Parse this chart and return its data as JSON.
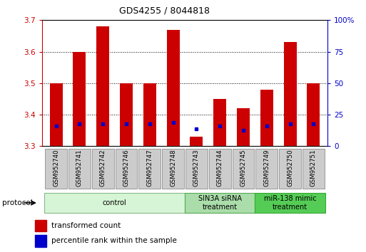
{
  "title": "GDS4255 / 8044818",
  "samples": [
    "GSM952740",
    "GSM952741",
    "GSM952742",
    "GSM952746",
    "GSM952747",
    "GSM952748",
    "GSM952743",
    "GSM952744",
    "GSM952745",
    "GSM952749",
    "GSM952750",
    "GSM952751"
  ],
  "red_values": [
    3.5,
    3.6,
    3.68,
    3.5,
    3.5,
    3.67,
    3.33,
    3.45,
    3.42,
    3.48,
    3.63,
    3.5
  ],
  "blue_values": [
    3.365,
    3.37,
    3.37,
    3.37,
    3.37,
    3.375,
    3.355,
    3.365,
    3.35,
    3.365,
    3.37,
    3.37
  ],
  "red_base": 3.3,
  "ylim_left": [
    3.3,
    3.7
  ],
  "yticks_left": [
    3.3,
    3.4,
    3.5,
    3.6,
    3.7
  ],
  "ylim_right": [
    0,
    100
  ],
  "yticks_right": [
    0,
    25,
    50,
    75,
    100
  ],
  "yticklabels_right": [
    "0",
    "25",
    "50",
    "75",
    "100%"
  ],
  "groups": [
    {
      "label": "control",
      "start": 0,
      "end": 6,
      "color": "#d6f5d6",
      "edge_color": "#88bb88"
    },
    {
      "label": "SIN3A siRNA\ntreatment",
      "start": 6,
      "end": 9,
      "color": "#aaddaa",
      "edge_color": "#55aa55"
    },
    {
      "label": "miR-138 mimic\ntreatment",
      "start": 9,
      "end": 12,
      "color": "#55cc55",
      "edge_color": "#33aa33"
    }
  ],
  "bar_color": "#cc0000",
  "blue_color": "#0000cc",
  "bar_width": 0.55,
  "legend_labels": [
    "transformed count",
    "percentile rank within the sample"
  ],
  "protocol_label": "protocol",
  "background_color": "#ffffff",
  "left_tick_color": "#cc0000",
  "right_tick_color": "#0000cc",
  "label_box_color": "#cccccc",
  "label_box_edge": "#999999"
}
